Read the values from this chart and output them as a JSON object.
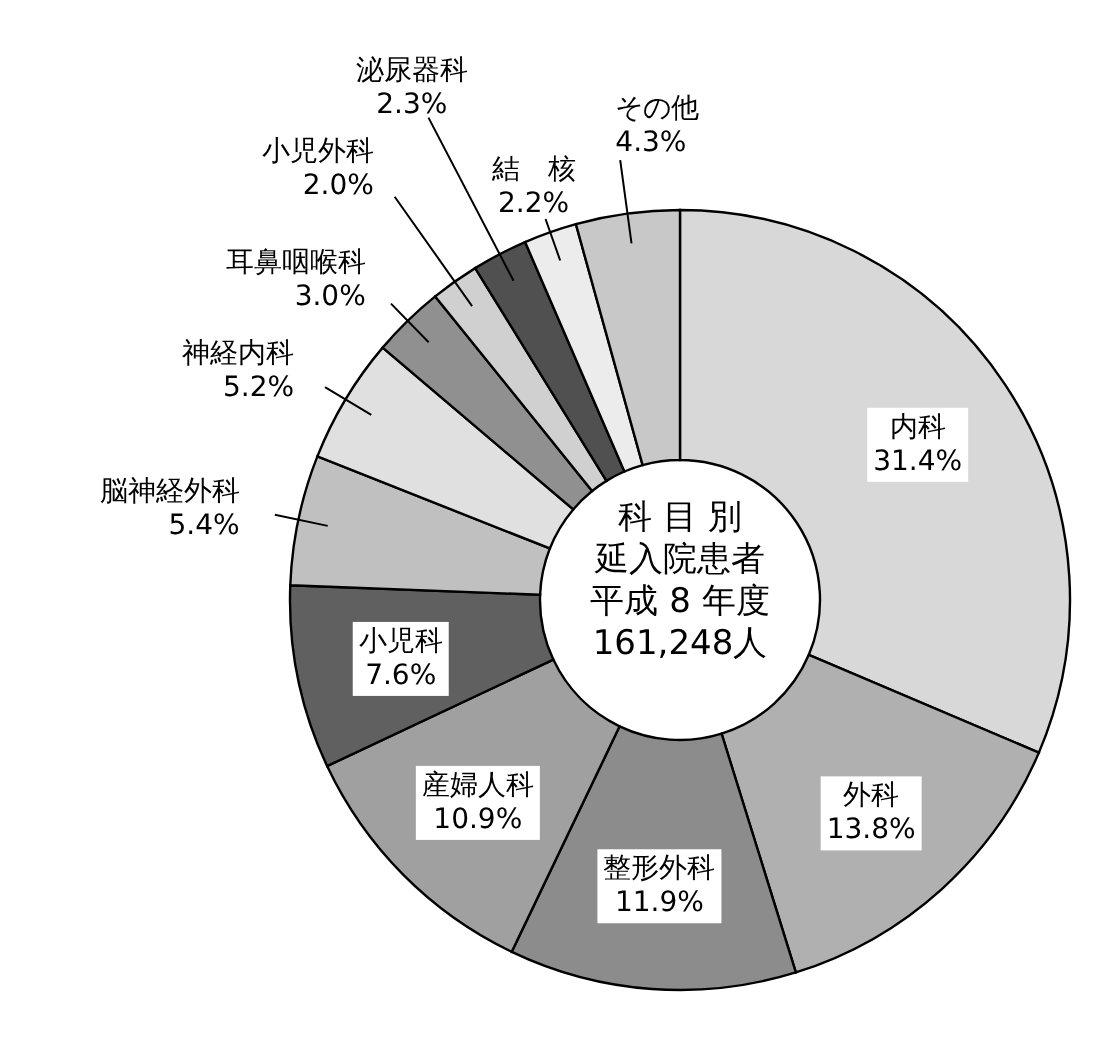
{
  "chart_data": {
    "type": "donut",
    "title": "科 目 別",
    "subtitle": "延入院患者",
    "annotations": [
      "平成 8 年度",
      "161,248人"
    ],
    "categories": [
      "内科",
      "外科",
      "整形外科",
      "産婦人科",
      "小児科",
      "脳神経外科",
      "神経内科",
      "耳鼻咽喉科",
      "小児外科",
      "泌尿器科",
      "結　核",
      "その他"
    ],
    "values": [
      31.4,
      13.8,
      11.9,
      10.9,
      7.6,
      5.4,
      5.2,
      3.0,
      2.0,
      2.3,
      2.2,
      4.3
    ],
    "value_labels": [
      "31.4%",
      "13.8%",
      "11.9%",
      "10.9%",
      "7.6%",
      "5.4%",
      "5.2%",
      "3.0%",
      "2.0%",
      "2.3%",
      "2.2%",
      "4.3%"
    ],
    "colors": [
      "#d8d8d8",
      "#b0b0b0",
      "#8c8c8c",
      "#a0a0a0",
      "#606060",
      "#c0c0c0",
      "#e0e0e0",
      "#909090",
      "#d0d0d0",
      "#505050",
      "#ececec",
      "#c8c8c8"
    ]
  }
}
